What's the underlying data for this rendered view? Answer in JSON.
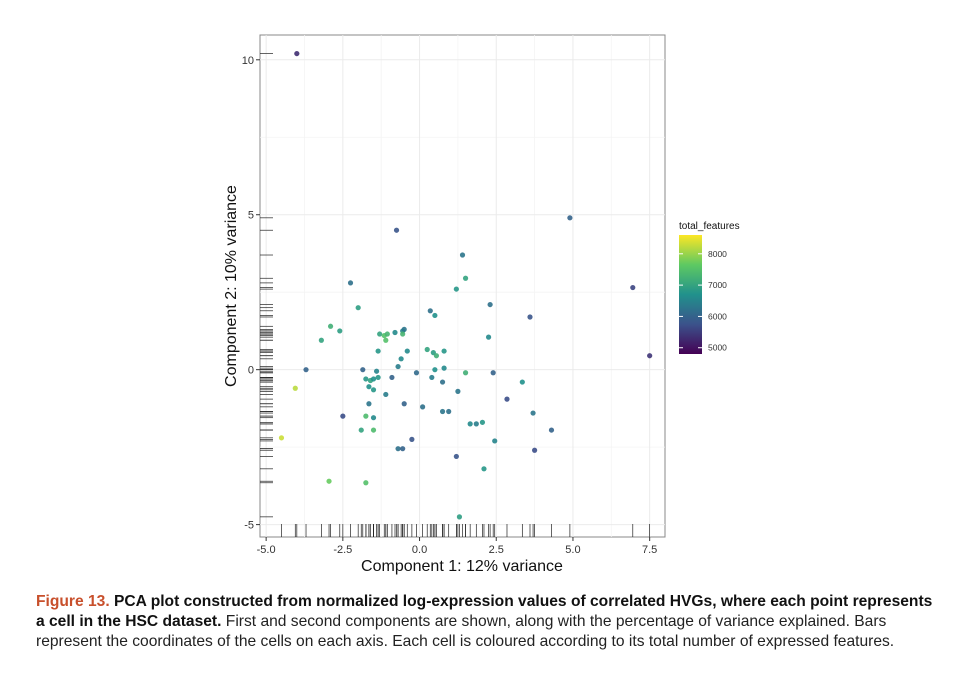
{
  "chart_data": {
    "type": "scatter",
    "xlabel": "Component 1: 12% variance",
    "ylabel": "Component 2: 10% variance",
    "xlim": [
      -5.2,
      8.0
    ],
    "ylim": [
      -5.4,
      10.8
    ],
    "xticks": [
      -5.0,
      -2.5,
      0.0,
      2.5,
      5.0,
      7.5
    ],
    "xtick_labels": [
      "-5.0",
      "-2.5",
      "0.0",
      "2.5",
      "5.0",
      "7.5"
    ],
    "yticks": [
      -5,
      0,
      5,
      10
    ],
    "ytick_labels": [
      "-5",
      "0",
      "5",
      "10"
    ],
    "grid": true,
    "rug": true,
    "legend": {
      "title": "total_features",
      "placement": "right",
      "range": [
        4800,
        8600
      ],
      "ticks": [
        8000,
        7000,
        6000,
        5000
      ],
      "tick_labels": [
        "8000",
        "7000",
        "6000",
        "5000"
      ],
      "colors": [
        "#440154",
        "#3b528b",
        "#21918c",
        "#5ec962",
        "#fde725"
      ]
    },
    "points": [
      {
        "x": -4.0,
        "y": 10.2,
        "c": 5300
      },
      {
        "x": 4.9,
        "y": 4.9,
        "c": 6000
      },
      {
        "x": -0.75,
        "y": 4.5,
        "c": 5800
      },
      {
        "x": 1.4,
        "y": 3.7,
        "c": 6300
      },
      {
        "x": 1.5,
        "y": 2.95,
        "c": 7000
      },
      {
        "x": -2.25,
        "y": 2.8,
        "c": 6200
      },
      {
        "x": 1.2,
        "y": 2.6,
        "c": 6800
      },
      {
        "x": 6.95,
        "y": 2.65,
        "c": 5600
      },
      {
        "x": 2.3,
        "y": 2.1,
        "c": 6200
      },
      {
        "x": -2.0,
        "y": 2.0,
        "c": 6900
      },
      {
        "x": 0.35,
        "y": 1.9,
        "c": 6200
      },
      {
        "x": 0.5,
        "y": 1.75,
        "c": 6700
      },
      {
        "x": 3.6,
        "y": 1.7,
        "c": 5800
      },
      {
        "x": -2.9,
        "y": 1.4,
        "c": 7200
      },
      {
        "x": -2.6,
        "y": 1.25,
        "c": 6900
      },
      {
        "x": -1.3,
        "y": 1.15,
        "c": 7000
      },
      {
        "x": -1.15,
        "y": 1.1,
        "c": 7500
      },
      {
        "x": -1.05,
        "y": 1.15,
        "c": 7300
      },
      {
        "x": -0.8,
        "y": 1.2,
        "c": 6600
      },
      {
        "x": -0.55,
        "y": 1.25,
        "c": 6500
      },
      {
        "x": -0.5,
        "y": 1.3,
        "c": 6300
      },
      {
        "x": -0.55,
        "y": 1.15,
        "c": 7300
      },
      {
        "x": -3.2,
        "y": 0.95,
        "c": 7000
      },
      {
        "x": -1.1,
        "y": 0.95,
        "c": 7500
      },
      {
        "x": 2.25,
        "y": 1.05,
        "c": 6600
      },
      {
        "x": -1.35,
        "y": 0.6,
        "c": 6800
      },
      {
        "x": -0.4,
        "y": 0.6,
        "c": 6600
      },
      {
        "x": 0.25,
        "y": 0.65,
        "c": 7000
      },
      {
        "x": 0.45,
        "y": 0.55,
        "c": 6900
      },
      {
        "x": 0.8,
        "y": 0.6,
        "c": 6800
      },
      {
        "x": -0.6,
        "y": 0.35,
        "c": 6600
      },
      {
        "x": -0.7,
        "y": 0.1,
        "c": 6400
      },
      {
        "x": 0.55,
        "y": 0.45,
        "c": 7200
      },
      {
        "x": -3.7,
        "y": 0.0,
        "c": 6000
      },
      {
        "x": -1.85,
        "y": 0.0,
        "c": 6000
      },
      {
        "x": -1.4,
        "y": -0.05,
        "c": 6500
      },
      {
        "x": -1.35,
        "y": -0.25,
        "c": 6800
      },
      {
        "x": -0.9,
        "y": -0.25,
        "c": 6000
      },
      {
        "x": -0.1,
        "y": -0.1,
        "c": 6100
      },
      {
        "x": 0.5,
        "y": 0.0,
        "c": 6700
      },
      {
        "x": 0.8,
        "y": 0.05,
        "c": 6600
      },
      {
        "x": -1.75,
        "y": -0.3,
        "c": 6800
      },
      {
        "x": -1.6,
        "y": -0.35,
        "c": 7000
      },
      {
        "x": -1.5,
        "y": -0.3,
        "c": 6700
      },
      {
        "x": 0.4,
        "y": -0.25,
        "c": 6400
      },
      {
        "x": 1.5,
        "y": -0.1,
        "c": 7200
      },
      {
        "x": 2.4,
        "y": -0.1,
        "c": 6000
      },
      {
        "x": -1.65,
        "y": -0.55,
        "c": 6700
      },
      {
        "x": 0.75,
        "y": -0.4,
        "c": 6200
      },
      {
        "x": 3.35,
        "y": -0.4,
        "c": 6700
      },
      {
        "x": -4.05,
        "y": -0.6,
        "c": 8200
      },
      {
        "x": -1.5,
        "y": -0.65,
        "c": 6800
      },
      {
        "x": -1.1,
        "y": -0.8,
        "c": 6400
      },
      {
        "x": 1.25,
        "y": -0.7,
        "c": 6300
      },
      {
        "x": 2.85,
        "y": -0.95,
        "c": 5700
      },
      {
        "x": -1.65,
        "y": -1.1,
        "c": 6300
      },
      {
        "x": -0.5,
        "y": -1.1,
        "c": 6000
      },
      {
        "x": 0.1,
        "y": -1.2,
        "c": 6200
      },
      {
        "x": 0.75,
        "y": -1.35,
        "c": 6300
      },
      {
        "x": 0.95,
        "y": -1.35,
        "c": 6200
      },
      {
        "x": 3.7,
        "y": -1.4,
        "c": 6300
      },
      {
        "x": -2.5,
        "y": -1.5,
        "c": 5700
      },
      {
        "x": -1.75,
        "y": -1.5,
        "c": 7400
      },
      {
        "x": -1.5,
        "y": -1.55,
        "c": 6600
      },
      {
        "x": 1.65,
        "y": -1.75,
        "c": 6600
      },
      {
        "x": 1.85,
        "y": -1.75,
        "c": 6400
      },
      {
        "x": 2.05,
        "y": -1.7,
        "c": 6800
      },
      {
        "x": -1.9,
        "y": -1.95,
        "c": 7000
      },
      {
        "x": -1.5,
        "y": -1.95,
        "c": 7400
      },
      {
        "x": 4.3,
        "y": -1.95,
        "c": 6000
      },
      {
        "x": -0.25,
        "y": -2.25,
        "c": 5800
      },
      {
        "x": 2.45,
        "y": -2.3,
        "c": 6500
      },
      {
        "x": -0.7,
        "y": -2.55,
        "c": 6200
      },
      {
        "x": -0.55,
        "y": -2.55,
        "c": 6000
      },
      {
        "x": 3.75,
        "y": -2.6,
        "c": 5700
      },
      {
        "x": 1.2,
        "y": -2.8,
        "c": 5800
      },
      {
        "x": -4.5,
        "y": -2.2,
        "c": 8300
      },
      {
        "x": 2.1,
        "y": -3.2,
        "c": 6800
      },
      {
        "x": -2.95,
        "y": -3.6,
        "c": 7700
      },
      {
        "x": -1.75,
        "y": -3.65,
        "c": 7500
      },
      {
        "x": 1.3,
        "y": -4.75,
        "c": 6900
      },
      {
        "x": 7.5,
        "y": 0.45,
        "c": 5400
      }
    ]
  },
  "caption": {
    "label": "Figure 13.",
    "title": "PCA plot constructed from normalized log-expression values of correlated HVGs, where each point represents a cell in the HSC dataset.",
    "body": "First and second components are shown, along with the percentage of variance explained. Bars represent the coordinates of the cells on each axis. Each cell is coloured according to its total number of expressed features."
  }
}
